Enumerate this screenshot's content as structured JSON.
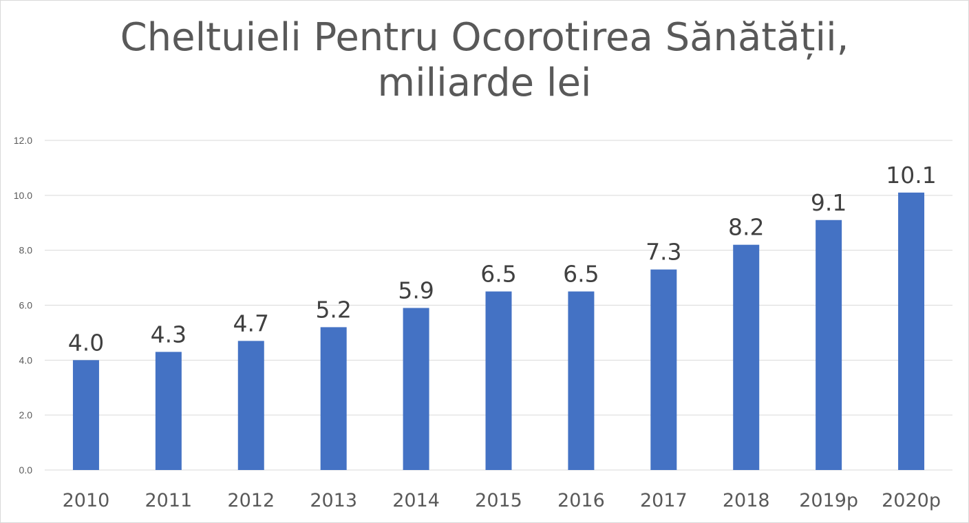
{
  "chart_data": {
    "type": "bar",
    "title": "Cheltuieli Pentru Ocorotirea Sănătății,\nmiliarde lei",
    "xlabel": "",
    "ylabel": "",
    "categories": [
      "2010",
      "2011",
      "2012",
      "2013",
      "2014",
      "2015",
      "2016",
      "2017",
      "2018",
      "2019p",
      "2020p"
    ],
    "values": [
      4.0,
      4.3,
      4.7,
      5.2,
      5.9,
      6.5,
      6.5,
      7.3,
      8.2,
      9.1,
      10.1
    ],
    "data_labels": [
      "4.0",
      "4.3",
      "4.7",
      "5.2",
      "5.9",
      "6.5",
      "6.5",
      "7.3",
      "8.2",
      "9.1",
      "10.1"
    ],
    "ylim": [
      0,
      12
    ],
    "yticks": [
      "0.0",
      "2.0",
      "4.0",
      "6.0",
      "8.0",
      "10.0",
      "12.0"
    ],
    "grid": true,
    "legend": "none",
    "colors": {
      "bar": "#4472c4",
      "grid": "#d9d9d9",
      "text": "#595959",
      "label": "#404040"
    }
  }
}
